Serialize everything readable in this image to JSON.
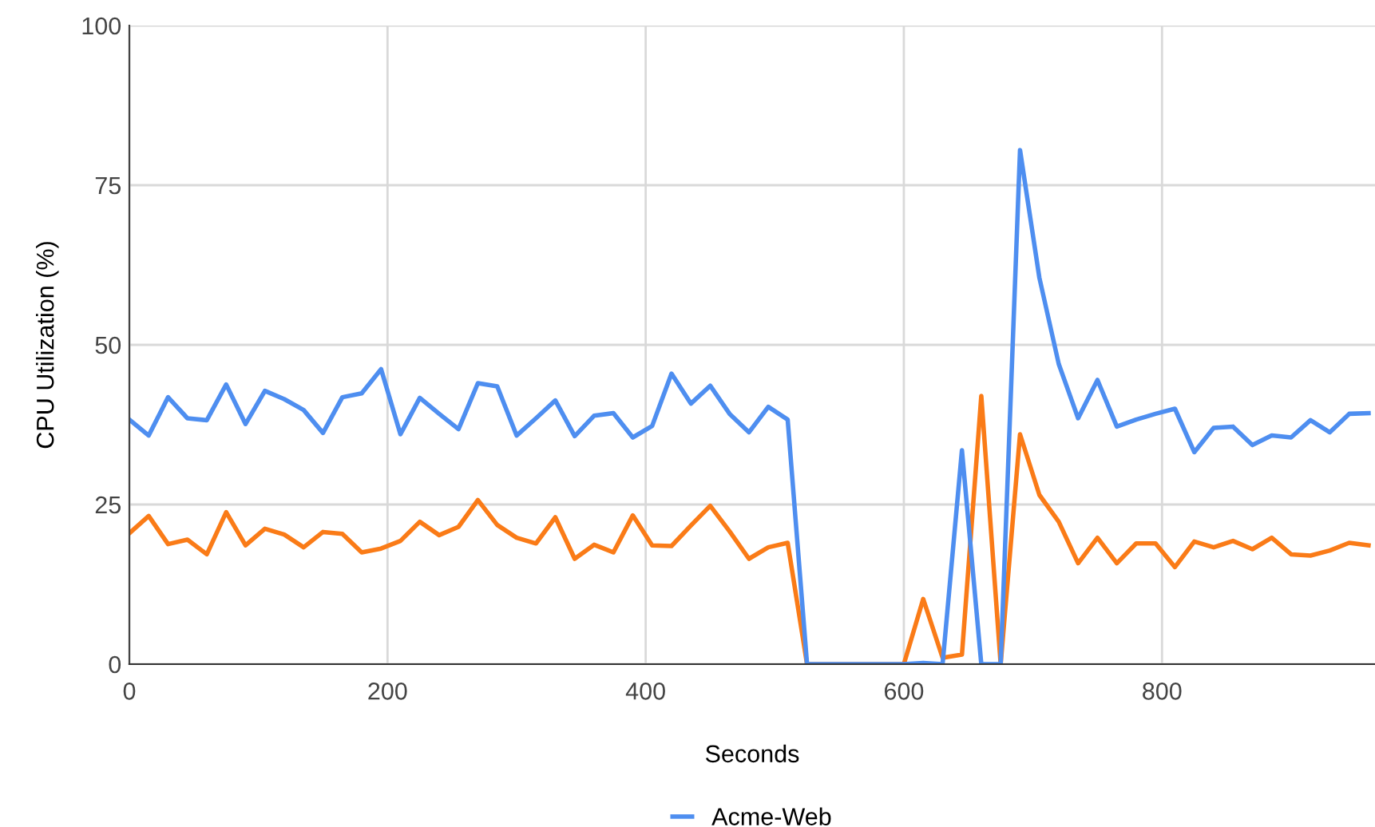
{
  "chart_data": {
    "type": "line",
    "xlabel": "Seconds",
    "ylabel": "CPU Utilization (%)",
    "x": [
      0,
      15,
      30,
      45,
      60,
      75,
      90,
      105,
      120,
      135,
      150,
      165,
      180,
      195,
      210,
      225,
      240,
      255,
      270,
      285,
      300,
      315,
      330,
      345,
      360,
      375,
      390,
      405,
      420,
      435,
      450,
      465,
      480,
      495,
      510,
      525,
      540,
      555,
      570,
      585,
      600,
      615,
      630,
      645,
      660,
      675,
      690,
      705,
      720,
      735,
      750,
      765,
      780,
      795,
      810,
      825,
      840,
      855,
      870,
      885,
      900,
      915,
      930,
      945,
      960
    ],
    "series": [
      {
        "color": "#fa7b17",
        "values": [
          20.5,
          23.2,
          18.8,
          19.5,
          17.2,
          23.8,
          18.6,
          21.2,
          20.3,
          18.3,
          20.7,
          20.4,
          17.5,
          18.1,
          19.3,
          22.3,
          20.2,
          21.5,
          25.7,
          21.8,
          19.8,
          18.9,
          23.0,
          16.5,
          18.7,
          17.5,
          23.3,
          18.6,
          18.5,
          21.7,
          24.8,
          20.8,
          16.5,
          18.3,
          19.0,
          0,
          0,
          0,
          0,
          0,
          0,
          10.2,
          1.0,
          1.5,
          42,
          0,
          36,
          26.5,
          22.3,
          15.8,
          19.8,
          15.8,
          18.9,
          18.9,
          15.2,
          19.2,
          18.3,
          19.3,
          18.0,
          19.8,
          17.2,
          17.0,
          17.8,
          19.0,
          18.6
        ]
      },
      {
        "name": "Acme-Web",
        "color": "#4e8ef0",
        "values": [
          38.3,
          35.8,
          41.8,
          38.5,
          38.2,
          43.8,
          37.6,
          42.8,
          41.5,
          39.8,
          36.2,
          41.8,
          42.4,
          46.2,
          36.0,
          41.7,
          39.2,
          36.8,
          44.0,
          43.5,
          35.8,
          38.5,
          41.3,
          35.7,
          38.9,
          39.3,
          35.5,
          37.3,
          45.5,
          40.8,
          43.6,
          39.2,
          36.3,
          40.3,
          38.3,
          0,
          0,
          0,
          0,
          0,
          0,
          0.2,
          0,
          33.5,
          0,
          0,
          80.5,
          60.5,
          47,
          38.5,
          44.5,
          37.2,
          38.3,
          39.2,
          40,
          33.2,
          37,
          37.2,
          34.3,
          35.8,
          35.5,
          38.2,
          36.3,
          39.2,
          39.3
        ]
      }
    ],
    "xlim": [
      0,
      965
    ],
    "xticks": [
      0,
      200,
      400,
      600,
      800
    ],
    "ylim": [
      0,
      100
    ],
    "yticks": [
      0,
      25,
      50,
      75,
      100
    ],
    "grid": true,
    "legend": "bottom",
    "marker": "none",
    "line_style": "solid"
  }
}
